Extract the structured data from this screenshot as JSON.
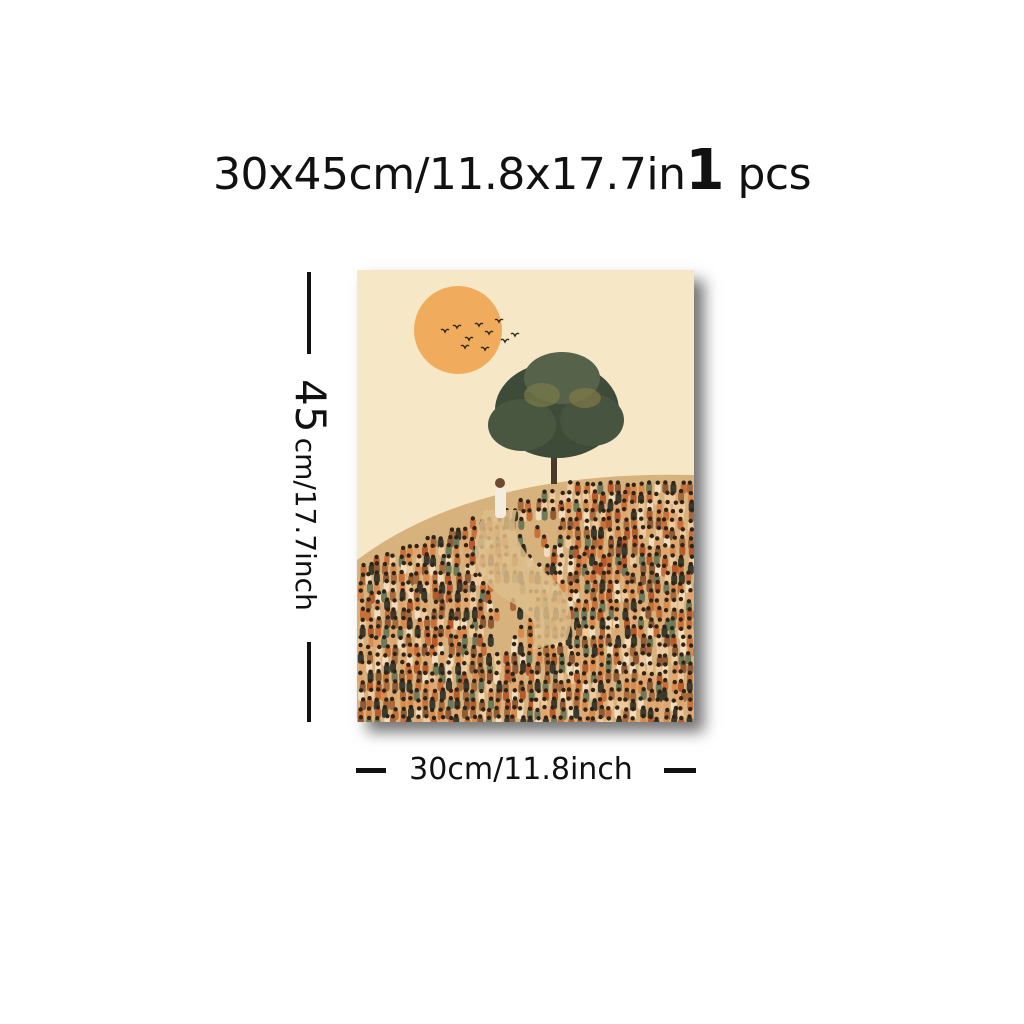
{
  "headline": {
    "size_text": "30x45cm/11.8x17.7in",
    "quantity": "1",
    "unit": "pcs"
  },
  "dimensions": {
    "height_value": "45",
    "height_units": "cm/17.7inch",
    "width_label": "30cm/11.8inch"
  },
  "colors": {
    "background_cream": "#f6e8c6",
    "sun_orange": "#f1ab5c",
    "tree_green": "#3e4b38",
    "crowd_orange": "#c9703a",
    "crowd_dark": "#3c3a2c"
  },
  "artwork": {
    "elements": [
      "sun",
      "birds",
      "tree",
      "robed-figure",
      "crowd-on-hill"
    ]
  }
}
